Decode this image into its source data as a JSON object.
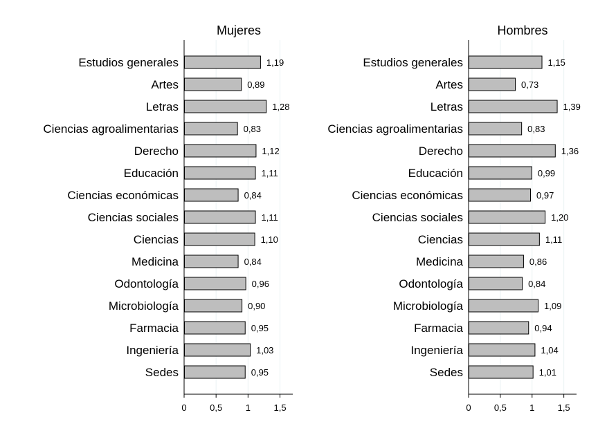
{
  "chart_data": [
    {
      "type": "bar",
      "orientation": "horizontal",
      "title": "Mujeres",
      "categories": [
        "Estudios generales",
        "Artes",
        "Letras",
        "Ciencias agroalimentarias",
        "Derecho",
        "Educación",
        "Ciencias económicas",
        "Ciencias sociales",
        "Ciencias",
        "Medicina",
        "Odontología",
        "Microbiología",
        "Farmacia",
        "Ingeniería",
        "Sedes"
      ],
      "values": [
        1.19,
        0.89,
        1.28,
        0.83,
        1.12,
        1.11,
        0.84,
        1.11,
        1.1,
        0.84,
        0.96,
        0.9,
        0.95,
        1.03,
        0.95
      ],
      "value_labels": [
        "1,19",
        "0,89",
        "1,28",
        "0,83",
        "1,12",
        "1,11",
        "0,84",
        "1,11",
        "1,10",
        "0,84",
        "0,96",
        "0,90",
        "0,95",
        "1,03",
        "0,95"
      ],
      "xticks": [
        0,
        0.5,
        1,
        1.5
      ],
      "xtick_labels": [
        "0",
        "0,5",
        "1",
        "1,5"
      ],
      "xlim": [
        0,
        1.7
      ],
      "grid": "vertical",
      "bar_color": "#bebebe",
      "bar_edge": "#000000",
      "grid_color": "#eaf2f3"
    },
    {
      "type": "bar",
      "orientation": "horizontal",
      "title": "Hombres",
      "categories": [
        "Estudios generales",
        "Artes",
        "Letras",
        "Ciencias agroalimentarias",
        "Derecho",
        "Educación",
        "Ciencias económicas",
        "Ciencias sociales",
        "Ciencias",
        "Medicina",
        "Odontología",
        "Microbiología",
        "Farmacia",
        "Ingeniería",
        "Sedes"
      ],
      "values": [
        1.15,
        0.73,
        1.39,
        0.83,
        1.36,
        0.99,
        0.97,
        1.2,
        1.11,
        0.86,
        0.84,
        1.09,
        0.94,
        1.04,
        1.01
      ],
      "value_labels": [
        "1,15",
        "0,73",
        "1,39",
        "0,83",
        "1,36",
        "0,99",
        "0,97",
        "1,20",
        "1,11",
        "0,86",
        "0,84",
        "1,09",
        "0,94",
        "1,04",
        "1,01"
      ],
      "xticks": [
        0,
        0.5,
        1,
        1.5
      ],
      "xtick_labels": [
        "0",
        "0,5",
        "1",
        "1,5"
      ],
      "xlim": [
        0,
        1.7
      ],
      "grid": "vertical",
      "bar_color": "#bebebe",
      "bar_edge": "#000000",
      "grid_color": "#eaf2f3"
    }
  ]
}
